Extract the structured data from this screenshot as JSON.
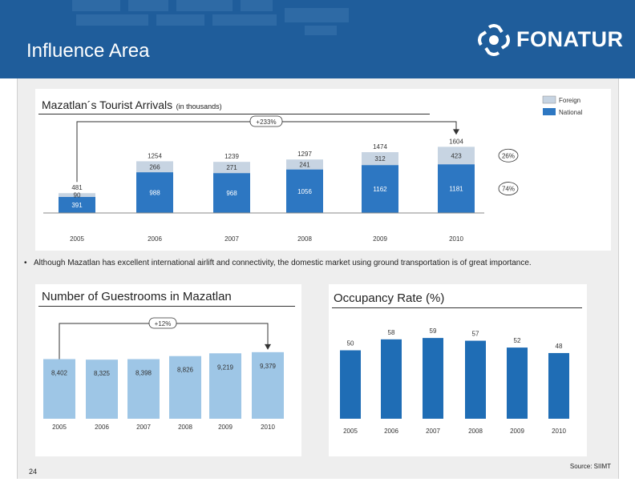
{
  "slide": {
    "title": "Influence Area",
    "logo_text": "FONATUR",
    "page_number": "24",
    "source": "Source: SIIMT",
    "bullet": "Although Mazatlan has excellent international airlift and connectivity, the domestic market using ground transportation is of great importance."
  },
  "colors": {
    "header_bg": "#1f5d9b",
    "bar_blue": "#1f6db5",
    "bar_light": "#9ec6e6",
    "foreign": "#c7d4e2",
    "national": "#2d77c2"
  },
  "chart_data": [
    {
      "type": "bar",
      "stacked": true,
      "title": "Mazatlan´s Tourist Arrivals",
      "subtitle": "(in thousands)",
      "categories": [
        "2005",
        "2006",
        "2007",
        "2008",
        "2009",
        "2010"
      ],
      "series": [
        {
          "name": "National",
          "values": [
            391,
            988,
            968,
            1056,
            1162,
            1181
          ],
          "labels": [
            "391",
            "988",
            "968",
            "1056",
            "1162",
            "1181"
          ]
        },
        {
          "name": "Foreign",
          "values": [
            90,
            266,
            271,
            241,
            312,
            423
          ],
          "labels": [
            "90",
            "266",
            "271",
            "241",
            "312",
            "423"
          ]
        }
      ],
      "totals": [
        "481",
        "1254",
        "1239",
        "1297",
        "1474",
        "1604"
      ],
      "growth_label": "+233%",
      "share_labels": {
        "foreign": "26%",
        "national": "74%"
      },
      "ylim": [
        0,
        1650
      ],
      "legend_position": "top-right"
    },
    {
      "type": "bar",
      "title": "Number of Guestrooms in Mazatlan",
      "categories": [
        "2005",
        "2006",
        "2007",
        "2008",
        "2009",
        "2010"
      ],
      "values": [
        8402,
        8325,
        8398,
        8826,
        9219,
        9379
      ],
      "labels": [
        "8,402",
        "8,325",
        "8,398",
        "8,826",
        "9,219",
        "9,379"
      ],
      "growth_label": "+12%",
      "ylim": [
        0,
        9700
      ]
    },
    {
      "type": "bar",
      "title": "Occupancy Rate (%)",
      "categories": [
        "2005",
        "2006",
        "2007",
        "2008",
        "2009",
        "2010"
      ],
      "values": [
        50,
        58,
        59,
        57,
        52,
        48
      ],
      "labels": [
        "50",
        "58",
        "59",
        "57",
        "52",
        "48"
      ],
      "ylim": [
        0,
        62
      ]
    }
  ]
}
